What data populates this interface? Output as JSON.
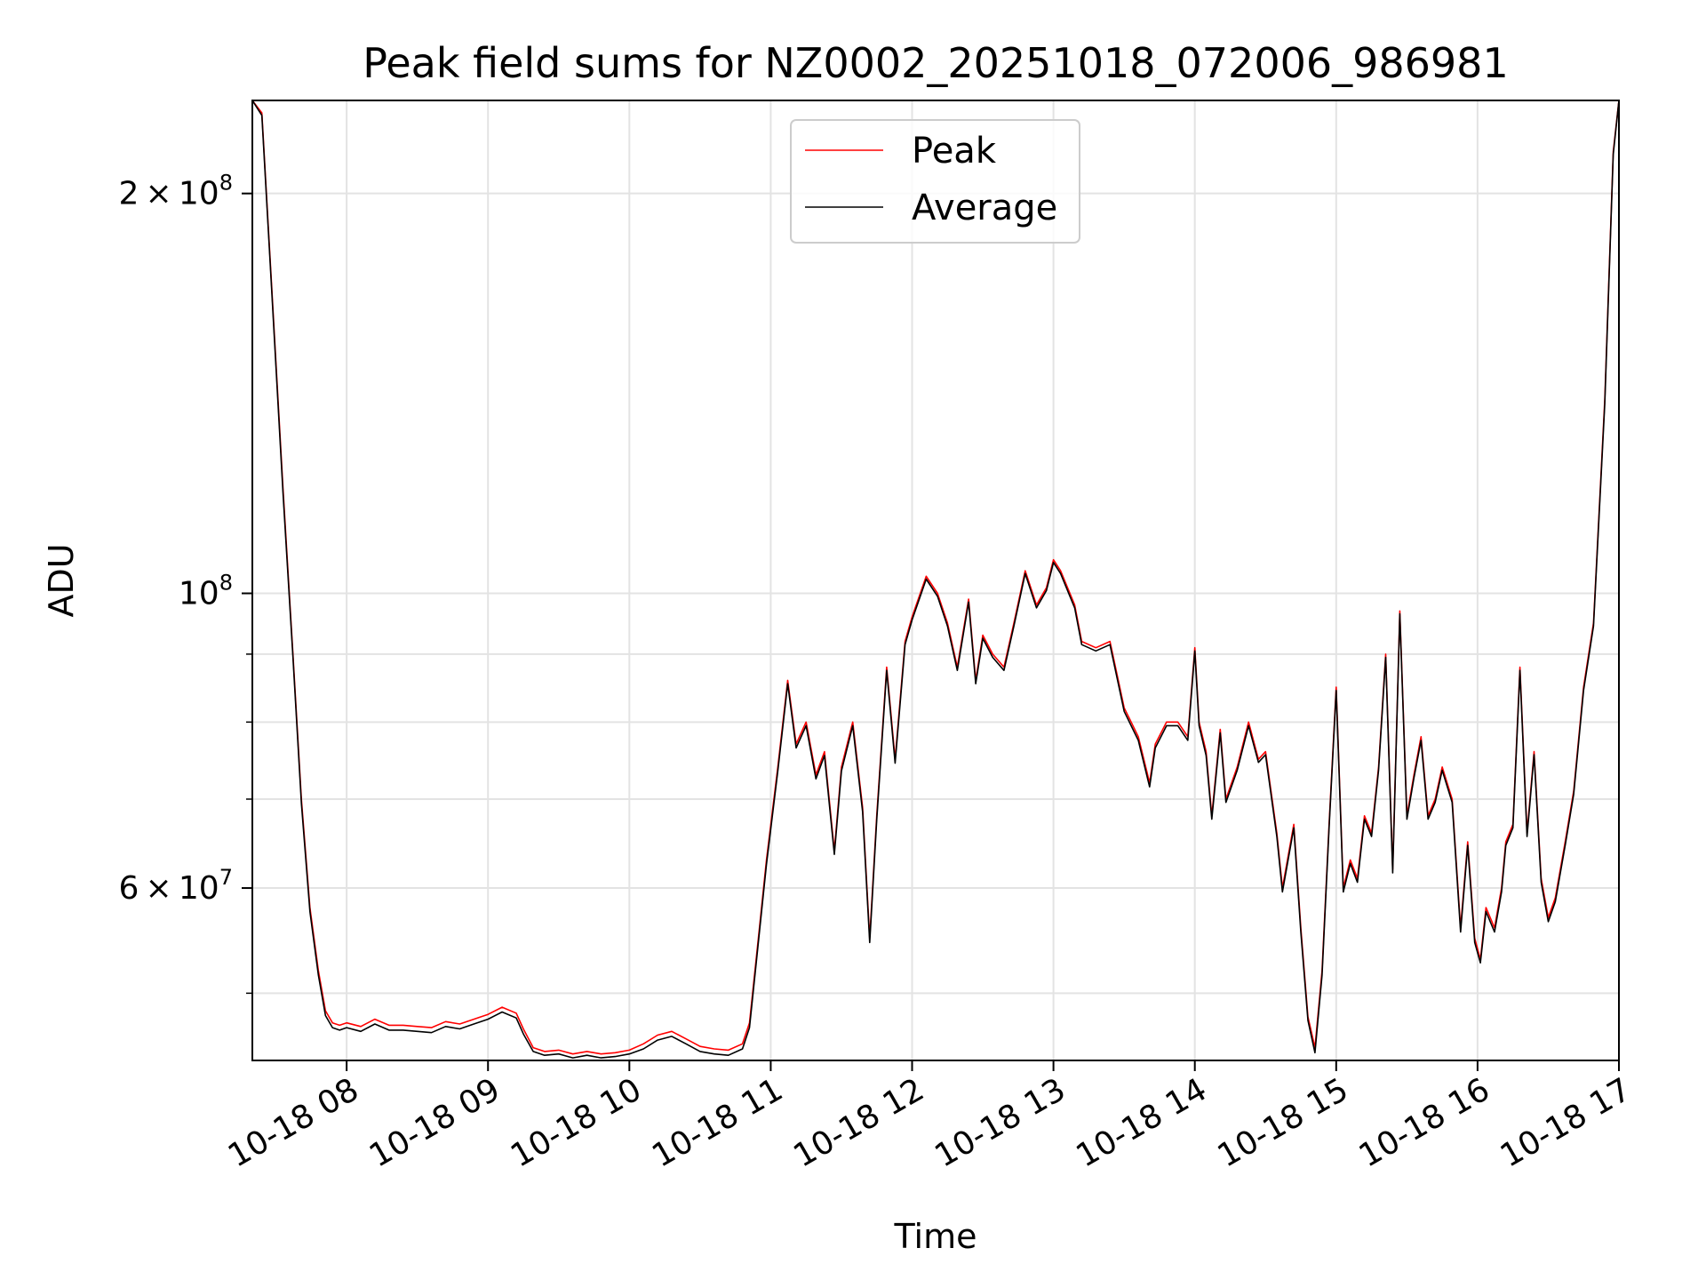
{
  "chart_data": {
    "type": "line",
    "title": "Peak field sums for NZ0002_20251018_072006_986981",
    "xlabel": "Time",
    "ylabel": "ADU",
    "yscale": "log",
    "xlim": [
      7.333,
      17.0
    ],
    "ylim": [
      44500000,
      235000000
    ],
    "grid": true,
    "legend_position": "top-center",
    "x_ticks": [
      {
        "value": 8,
        "label": "10-18 08"
      },
      {
        "value": 9,
        "label": "10-18 09"
      },
      {
        "value": 10,
        "label": "10-18 10"
      },
      {
        "value": 11,
        "label": "10-18 11"
      },
      {
        "value": 12,
        "label": "10-18 12"
      },
      {
        "value": 13,
        "label": "10-18 13"
      },
      {
        "value": 14,
        "label": "10-18 14"
      },
      {
        "value": 15,
        "label": "10-18 15"
      },
      {
        "value": 16,
        "label": "10-18 16"
      },
      {
        "value": 17,
        "label": "10-18 17"
      }
    ],
    "y_major_ticks": [
      {
        "value": 60000000,
        "mantissa": "6",
        "exponent": "7"
      },
      {
        "value": 100000000,
        "mantissa": "",
        "exponent": "8"
      },
      {
        "value": 200000000,
        "mantissa": "2",
        "exponent": "8"
      }
    ],
    "y_minor_ticks": [
      50000000,
      70000000,
      80000000,
      90000000
    ],
    "x_unit": "hour of 2025-10-18",
    "series": [
      {
        "name": "Peak",
        "color": "#ff0000",
        "x": [
          7.333,
          7.4,
          7.47,
          7.55,
          7.62,
          7.68,
          7.74,
          7.8,
          7.85,
          7.9,
          7.95,
          8.0,
          8.1,
          8.2,
          8.3,
          8.4,
          8.5,
          8.6,
          8.7,
          8.8,
          8.9,
          9.0,
          9.1,
          9.2,
          9.25,
          9.32,
          9.4,
          9.5,
          9.6,
          9.7,
          9.8,
          9.9,
          10.0,
          10.1,
          10.2,
          10.3,
          10.4,
          10.5,
          10.6,
          10.7,
          10.8,
          10.85,
          10.92,
          10.97,
          11.05,
          11.12,
          11.18,
          11.25,
          11.32,
          11.38,
          11.45,
          11.5,
          11.58,
          11.65,
          11.7,
          11.75,
          11.82,
          11.88,
          11.95,
          12.0,
          12.1,
          12.18,
          12.25,
          12.32,
          12.4,
          12.45,
          12.5,
          12.57,
          12.65,
          12.72,
          12.8,
          12.88,
          12.95,
          13.0,
          13.05,
          13.15,
          13.2,
          13.3,
          13.4,
          13.5,
          13.6,
          13.68,
          13.72,
          13.8,
          13.88,
          13.95,
          14.0,
          14.03,
          14.08,
          14.12,
          14.18,
          14.22,
          14.3,
          14.38,
          14.45,
          14.5,
          14.58,
          14.62,
          14.7,
          14.75,
          14.8,
          14.85,
          14.9,
          14.95,
          15.0,
          15.05,
          15.1,
          15.15,
          15.2,
          15.25,
          15.3,
          15.35,
          15.4,
          15.45,
          15.5,
          15.55,
          15.6,
          15.65,
          15.7,
          15.75,
          15.82,
          15.88,
          15.93,
          15.98,
          16.02,
          16.06,
          16.12,
          16.17,
          16.2,
          16.25,
          16.3,
          16.35,
          16.4,
          16.45,
          16.5,
          16.55,
          16.62,
          16.68,
          16.75,
          16.82,
          16.9,
          16.96,
          17.0
        ],
        "values": [
          235000000,
          230000000,
          170000000,
          120000000,
          90000000,
          70000000,
          58000000,
          52000000,
          48500000,
          47500000,
          47300000,
          47500000,
          47200000,
          47800000,
          47300000,
          47300000,
          47200000,
          47100000,
          47600000,
          47400000,
          47800000,
          48200000,
          48800000,
          48300000,
          47000000,
          45500000,
          45200000,
          45300000,
          45000000,
          45200000,
          45000000,
          45100000,
          45300000,
          45800000,
          46500000,
          46800000,
          46200000,
          45600000,
          45400000,
          45300000,
          45800000,
          47500000,
          56000000,
          63000000,
          74000000,
          86000000,
          77000000,
          80000000,
          73000000,
          76000000,
          64000000,
          74000000,
          80000000,
          69000000,
          55000000,
          68000000,
          88000000,
          75000000,
          92000000,
          96000000,
          103000000,
          100000000,
          95000000,
          88000000,
          99000000,
          86000000,
          93000000,
          90000000,
          88000000,
          95000000,
          104000000,
          98000000,
          101000000,
          106000000,
          104000000,
          98000000,
          92000000,
          91000000,
          92000000,
          82000000,
          78000000,
          72000000,
          77000000,
          80000000,
          80000000,
          78000000,
          91000000,
          80000000,
          76000000,
          68000000,
          79000000,
          70000000,
          74000000,
          80000000,
          75000000,
          76000000,
          66000000,
          60000000,
          67000000,
          56000000,
          48000000,
          45500000,
          52000000,
          67000000,
          85000000,
          60000000,
          63000000,
          61000000,
          68000000,
          66000000,
          74000000,
          90000000,
          62000000,
          97000000,
          68000000,
          73000000,
          78000000,
          68000000,
          70000000,
          74000000,
          70000000,
          56000000,
          65000000,
          55000000,
          53000000,
          58000000,
          56000000,
          60000000,
          65000000,
          67000000,
          88000000,
          66000000,
          76000000,
          61000000,
          57000000,
          59000000,
          65000000,
          71000000,
          85000000,
          95000000,
          140000000,
          215000000,
          235000000
        ]
      },
      {
        "name": "Average",
        "color": "#000000",
        "x": [
          7.333,
          7.4,
          7.47,
          7.55,
          7.62,
          7.68,
          7.74,
          7.8,
          7.85,
          7.9,
          7.95,
          8.0,
          8.1,
          8.2,
          8.3,
          8.4,
          8.5,
          8.6,
          8.7,
          8.8,
          8.9,
          9.0,
          9.1,
          9.2,
          9.25,
          9.32,
          9.4,
          9.5,
          9.6,
          9.7,
          9.8,
          9.9,
          10.0,
          10.1,
          10.2,
          10.3,
          10.4,
          10.5,
          10.6,
          10.7,
          10.8,
          10.85,
          10.92,
          10.97,
          11.05,
          11.12,
          11.18,
          11.25,
          11.32,
          11.38,
          11.45,
          11.5,
          11.58,
          11.65,
          11.7,
          11.75,
          11.82,
          11.88,
          11.95,
          12.0,
          12.1,
          12.18,
          12.25,
          12.32,
          12.4,
          12.45,
          12.5,
          12.57,
          12.65,
          12.72,
          12.8,
          12.88,
          12.95,
          13.0,
          13.05,
          13.15,
          13.2,
          13.3,
          13.4,
          13.5,
          13.6,
          13.68,
          13.72,
          13.8,
          13.88,
          13.95,
          14.0,
          14.03,
          14.08,
          14.12,
          14.18,
          14.22,
          14.3,
          14.38,
          14.45,
          14.5,
          14.58,
          14.62,
          14.7,
          14.75,
          14.8,
          14.85,
          14.9,
          14.95,
          15.0,
          15.05,
          15.1,
          15.15,
          15.2,
          15.25,
          15.3,
          15.35,
          15.4,
          15.45,
          15.5,
          15.55,
          15.6,
          15.65,
          15.7,
          15.75,
          15.82,
          15.88,
          15.93,
          15.98,
          16.02,
          16.06,
          16.12,
          16.17,
          16.2,
          16.25,
          16.3,
          16.35,
          16.4,
          16.45,
          16.5,
          16.55,
          16.62,
          16.68,
          16.75,
          16.82,
          16.9,
          16.96,
          17.0
        ],
        "values": [
          235000000,
          229000000,
          169000000,
          119000000,
          89500000,
          69500000,
          57600000,
          51600000,
          48100000,
          47100000,
          46900000,
          47100000,
          46800000,
          47400000,
          46900000,
          46900000,
          46800000,
          46700000,
          47200000,
          47000000,
          47400000,
          47800000,
          48400000,
          47900000,
          46600000,
          45200000,
          44900000,
          45000000,
          44700000,
          44900000,
          44700000,
          44800000,
          45000000,
          45400000,
          46100000,
          46400000,
          45800000,
          45200000,
          45000000,
          44900000,
          45400000,
          47100000,
          55600000,
          62500000,
          73500000,
          85500000,
          76500000,
          79500000,
          72500000,
          75500000,
          63600000,
          73500000,
          79500000,
          68500000,
          54600000,
          67500000,
          87500000,
          74500000,
          91500000,
          95500000,
          102500000,
          99500000,
          94500000,
          87500000,
          98500000,
          85500000,
          92500000,
          89500000,
          87500000,
          94500000,
          103500000,
          97500000,
          100500000,
          105500000,
          103500000,
          97500000,
          91500000,
          90500000,
          91500000,
          81500000,
          77500000,
          71500000,
          76500000,
          79500000,
          79500000,
          77500000,
          90500000,
          79500000,
          75500000,
          67600000,
          78500000,
          69600000,
          73600000,
          79500000,
          74600000,
          75600000,
          65600000,
          59600000,
          66600000,
          55600000,
          47700000,
          45100000,
          51600000,
          66600000,
          84500000,
          59600000,
          62600000,
          60600000,
          67600000,
          65600000,
          73600000,
          89500000,
          61600000,
          96500000,
          67600000,
          72600000,
          77500000,
          67600000,
          69600000,
          73600000,
          69600000,
          55600000,
          64600000,
          54600000,
          52700000,
          57600000,
          55600000,
          59600000,
          64600000,
          66600000,
          87500000,
          65600000,
          75600000,
          60600000,
          56600000,
          58600000,
          64600000,
          70600000,
          84500000,
          94500000,
          139000000,
          214000000,
          235000000
        ]
      }
    ]
  }
}
